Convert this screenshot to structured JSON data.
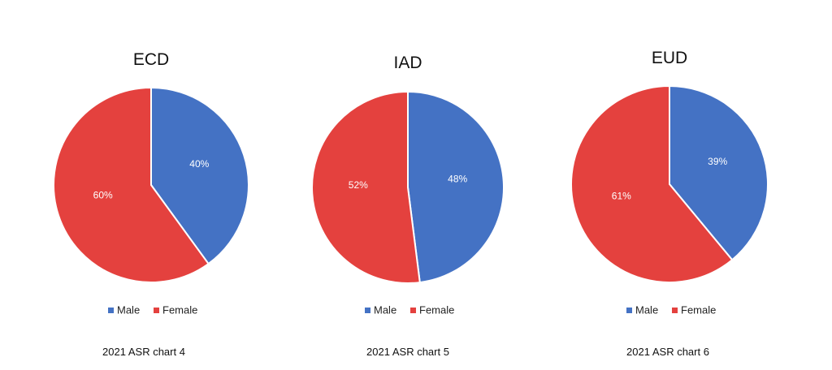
{
  "colors": {
    "male": "#4472C4",
    "female": "#E4413E"
  },
  "chart_data": [
    {
      "type": "pie",
      "title": "ECD",
      "categories": [
        "Male",
        "Female"
      ],
      "values": [
        40,
        60
      ],
      "labels": [
        "40%",
        "60%"
      ],
      "legend": [
        "Male",
        "Female"
      ],
      "legend_position": "bottom",
      "caption": "2021 ASR chart 4"
    },
    {
      "type": "pie",
      "title": "IAD",
      "categories": [
        "Male",
        "Female"
      ],
      "values": [
        48,
        52
      ],
      "labels": [
        "48%",
        "52%"
      ],
      "legend": [
        "Male",
        "Female"
      ],
      "legend_position": "bottom",
      "caption": "2021 ASR chart 5"
    },
    {
      "type": "pie",
      "title": "EUD",
      "categories": [
        "Male",
        "Female"
      ],
      "values": [
        39,
        61
      ],
      "labels": [
        "39%",
        "61%"
      ],
      "legend": [
        "Male",
        "Female"
      ],
      "legend_position": "bottom",
      "caption": "2021 ASR chart 6"
    }
  ]
}
